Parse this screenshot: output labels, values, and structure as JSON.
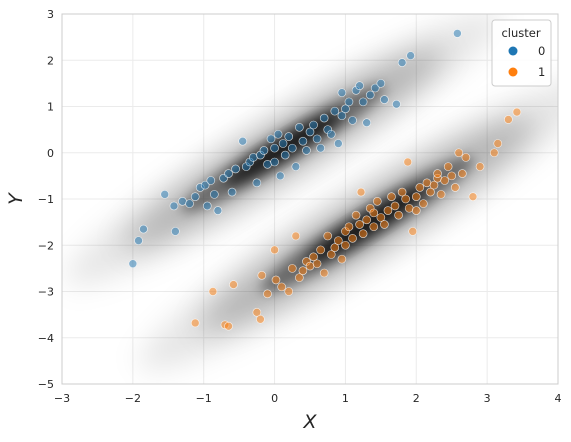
{
  "chart_data": {
    "type": "scatter",
    "xlabel": "X",
    "ylabel": "Y",
    "xlim": [
      -3,
      4
    ],
    "ylim": [
      -5,
      3
    ],
    "xticks": [
      -3,
      -2,
      -1,
      0,
      1,
      2,
      3,
      4
    ],
    "yticks": [
      -5,
      -4,
      -3,
      -2,
      -1,
      0,
      1,
      2,
      3
    ],
    "grid": true,
    "legend": {
      "title": "cluster",
      "placement": "top-right"
    },
    "background": "gray density (kde) over both clusters",
    "series": [
      {
        "name": "0",
        "color": "#1f77b4",
        "points": [
          [
            -2.0,
            -2.4
          ],
          [
            -1.92,
            -1.9
          ],
          [
            -1.85,
            -1.65
          ],
          [
            -1.55,
            -0.9
          ],
          [
            -1.42,
            -1.15
          ],
          [
            -1.4,
            -1.7
          ],
          [
            -1.3,
            -1.05
          ],
          [
            -1.2,
            -1.1
          ],
          [
            -1.12,
            -0.95
          ],
          [
            -1.05,
            -0.75
          ],
          [
            -0.98,
            -0.7
          ],
          [
            -0.95,
            -1.15
          ],
          [
            -0.9,
            -0.6
          ],
          [
            -0.85,
            -0.9
          ],
          [
            -0.8,
            -1.25
          ],
          [
            -0.72,
            -0.55
          ],
          [
            -0.65,
            -0.45
          ],
          [
            -0.6,
            -0.85
          ],
          [
            -0.55,
            -0.35
          ],
          [
            -0.45,
            0.25
          ],
          [
            -0.4,
            -0.3
          ],
          [
            -0.35,
            -0.2
          ],
          [
            -0.3,
            -0.1
          ],
          [
            -0.25,
            -0.65
          ],
          [
            -0.2,
            -0.05
          ],
          [
            -0.15,
            0.05
          ],
          [
            -0.1,
            -0.25
          ],
          [
            -0.05,
            0.3
          ],
          [
            0.0,
            0.1
          ],
          [
            0.05,
            0.4
          ],
          [
            0.0,
            -0.2
          ],
          [
            0.08,
            -0.5
          ],
          [
            0.12,
            0.2
          ],
          [
            0.15,
            -0.05
          ],
          [
            0.2,
            0.35
          ],
          [
            0.25,
            0.1
          ],
          [
            0.3,
            -0.3
          ],
          [
            0.35,
            0.55
          ],
          [
            0.4,
            0.25
          ],
          [
            0.45,
            0.05
          ],
          [
            0.5,
            0.45
          ],
          [
            0.55,
            0.6
          ],
          [
            0.6,
            0.3
          ],
          [
            0.65,
            0.1
          ],
          [
            0.7,
            0.75
          ],
          [
            0.75,
            0.5
          ],
          [
            0.8,
            0.4
          ],
          [
            0.85,
            0.9
          ],
          [
            0.9,
            0.2
          ],
          [
            0.95,
            1.3
          ],
          [
            1.0,
            0.95
          ],
          [
            1.05,
            1.1
          ],
          [
            1.1,
            0.7
          ],
          [
            1.15,
            1.35
          ],
          [
            1.2,
            1.45
          ],
          [
            1.25,
            1.1
          ],
          [
            1.3,
            0.65
          ],
          [
            1.35,
            1.25
          ],
          [
            1.42,
            1.4
          ],
          [
            1.5,
            1.5
          ],
          [
            1.55,
            1.15
          ],
          [
            1.72,
            1.05
          ],
          [
            1.8,
            1.95
          ],
          [
            1.92,
            2.1
          ],
          [
            2.58,
            2.58
          ],
          [
            0.95,
            0.8
          ]
        ]
      },
      {
        "name": "1",
        "color": "#ff7f0e",
        "points": [
          [
            -1.12,
            -3.68
          ],
          [
            -0.87,
            -3.0
          ],
          [
            -0.7,
            -3.72
          ],
          [
            -0.65,
            -3.75
          ],
          [
            -0.58,
            -2.85
          ],
          [
            -0.25,
            -3.45
          ],
          [
            -0.2,
            -3.6
          ],
          [
            -0.18,
            -2.65
          ],
          [
            -0.1,
            -3.05
          ],
          [
            0.0,
            -2.1
          ],
          [
            0.02,
            -2.75
          ],
          [
            0.1,
            -2.9
          ],
          [
            0.2,
            -3.0
          ],
          [
            0.25,
            -2.5
          ],
          [
            0.3,
            -1.8
          ],
          [
            0.35,
            -2.7
          ],
          [
            0.4,
            -2.55
          ],
          [
            0.45,
            -2.35
          ],
          [
            0.5,
            -2.45
          ],
          [
            0.55,
            -2.25
          ],
          [
            0.6,
            -2.4
          ],
          [
            0.65,
            -2.1
          ],
          [
            0.7,
            -2.6
          ],
          [
            0.75,
            -1.8
          ],
          [
            0.8,
            -2.2
          ],
          [
            0.85,
            -2.05
          ],
          [
            0.9,
            -1.9
          ],
          [
            0.95,
            -2.3
          ],
          [
            1.0,
            -1.7
          ],
          [
            1.05,
            -1.6
          ],
          [
            1.1,
            -1.85
          ],
          [
            1.15,
            -1.35
          ],
          [
            1.2,
            -1.55
          ],
          [
            1.22,
            -0.85
          ],
          [
            1.25,
            -1.75
          ],
          [
            1.3,
            -1.45
          ],
          [
            1.35,
            -1.2
          ],
          [
            1.4,
            -1.3
          ],
          [
            1.45,
            -1.05
          ],
          [
            1.5,
            -1.4
          ],
          [
            1.55,
            -1.55
          ],
          [
            1.6,
            -1.25
          ],
          [
            1.65,
            -0.95
          ],
          [
            1.7,
            -1.15
          ],
          [
            1.75,
            -1.35
          ],
          [
            1.8,
            -0.85
          ],
          [
            1.85,
            -1.0
          ],
          [
            1.88,
            -0.2
          ],
          [
            1.9,
            -1.2
          ],
          [
            1.95,
            -1.7
          ],
          [
            2.0,
            -0.95
          ],
          [
            2.05,
            -0.75
          ],
          [
            2.1,
            -1.1
          ],
          [
            2.15,
            -0.65
          ],
          [
            2.2,
            -0.85
          ],
          [
            2.25,
            -0.7
          ],
          [
            2.3,
            -0.55
          ],
          [
            2.35,
            -0.9
          ],
          [
            2.4,
            -0.6
          ],
          [
            2.45,
            -0.3
          ],
          [
            2.5,
            -0.5
          ],
          [
            2.55,
            -0.75
          ],
          [
            2.6,
            0.0
          ],
          [
            2.65,
            -0.45
          ],
          [
            2.7,
            -0.1
          ],
          [
            2.8,
            -0.95
          ],
          [
            2.9,
            -0.3
          ],
          [
            3.1,
            0.0
          ],
          [
            3.15,
            0.2
          ],
          [
            3.3,
            0.72
          ],
          [
            3.42,
            0.88
          ],
          [
            1.0,
            -2.0
          ],
          [
            1.4,
            -1.6
          ],
          [
            2.0,
            -1.25
          ],
          [
            2.3,
            -0.45
          ]
        ]
      }
    ]
  }
}
